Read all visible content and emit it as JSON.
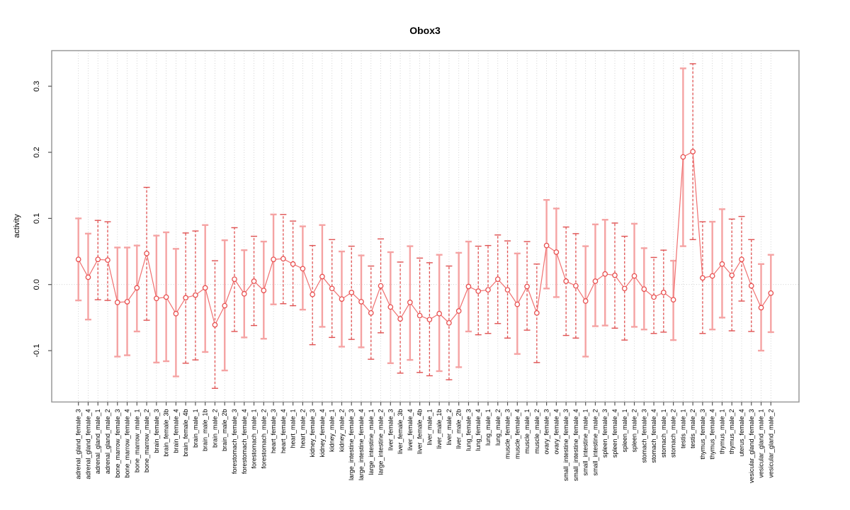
{
  "title": "Obox3",
  "chart_data": {
    "type": "line",
    "title": "Obox3",
    "xlabel": "",
    "ylabel": "activity",
    "ylim": [
      -0.178,
      0.354
    ],
    "yticks": [
      -0.1,
      0.0,
      0.1,
      0.2,
      0.3
    ],
    "ytick_labels": [
      "-0.1",
      "0.0",
      "0.1",
      "0.2",
      "0.3"
    ],
    "grid": "dotted vertical line at every category; dotted horizontal line at y=0",
    "legend_position": "none",
    "marker": "open-circle",
    "categories": [
      "adrenal_gland_female_3",
      "adrenal_gland_female_4",
      "adrenal_gland_male_1",
      "adrenal_gland_male_2",
      "bone_marrow_female_3",
      "bone_marrow_female_4",
      "bone_marrow_male_1",
      "bone_marrow_male_2",
      "brain_female_3",
      "brain_female_3b",
      "brain_female_4",
      "brain_female_4b",
      "brain_male_1",
      "brain_male_1b",
      "brain_male_2",
      "brain_male_2b",
      "forestomach_female_3",
      "forestomach_female_4",
      "forestomach_male_1",
      "forestomach_male_2",
      "heart_female_3",
      "heart_female_4",
      "heart_male_1",
      "heart_male_2",
      "kidney_female_3",
      "kidney_female_4",
      "kidney_male_1",
      "kidney_male_2",
      "large_intestine_female_3",
      "large_intestine_female_4",
      "large_intestine_male_1",
      "large_intestine_male_2",
      "liver_female_3",
      "liver_female_3b",
      "liver_female_4",
      "liver_female_4b",
      "liver_male_1",
      "liver_male_1b",
      "liver_male_2",
      "liver_male_2b",
      "lung_female_3",
      "lung_female_4",
      "lung_male_1",
      "lung_male_2",
      "muscle_female_3",
      "muscle_female_4",
      "muscle_male_1",
      "muscle_male_2",
      "ovary_female_3",
      "ovary_female_4",
      "small_intestine_female_3",
      "small_intestine_female_4",
      "small_intestine_male_1",
      "small_intestine_male_2",
      "spleen_female_3",
      "spleen_female_4",
      "spleen_male_1",
      "spleen_male_2",
      "stomach_female_3",
      "stomach_female_4",
      "stomach_male_1",
      "stomach_male_2",
      "testis_male_1",
      "testis_male_2",
      "thymus_female_3",
      "thymus_female_4",
      "thymus_male_1",
      "thymus_male_2",
      "uterus_female_4",
      "vesicular_gland_female_3",
      "vesicular_gland_male_1",
      "vesicular_gland_male_2"
    ],
    "series": [
      {
        "name": "activity",
        "values": [
          0.038,
          0.011,
          0.038,
          0.037,
          -0.027,
          -0.026,
          -0.005,
          0.047,
          -0.021,
          -0.019,
          -0.044,
          -0.02,
          -0.016,
          -0.005,
          -0.061,
          -0.032,
          0.008,
          -0.014,
          0.005,
          -0.009,
          0.038,
          0.039,
          0.031,
          0.024,
          -0.015,
          0.012,
          -0.006,
          -0.022,
          -0.012,
          -0.026,
          -0.043,
          -0.002,
          -0.034,
          -0.052,
          -0.027,
          -0.047,
          -0.053,
          -0.044,
          -0.058,
          -0.04,
          -0.003,
          -0.01,
          -0.008,
          0.008,
          -0.008,
          -0.03,
          -0.003,
          -0.043,
          0.059,
          0.049,
          0.005,
          -0.002,
          -0.025,
          0.005,
          0.016,
          0.014,
          -0.006,
          0.013,
          -0.007,
          -0.019,
          -0.012,
          -0.023,
          0.193,
          0.201,
          0.01,
          0.013,
          0.031,
          0.014,
          0.038,
          -0.002,
          -0.035,
          -0.013
        ],
        "err_lo": [
          -0.024,
          -0.053,
          -0.023,
          -0.024,
          -0.109,
          -0.107,
          -0.071,
          -0.054,
          -0.118,
          -0.116,
          -0.139,
          -0.119,
          -0.114,
          -0.102,
          -0.157,
          -0.13,
          -0.071,
          -0.08,
          -0.062,
          -0.082,
          -0.03,
          -0.029,
          -0.032,
          -0.038,
          -0.091,
          -0.064,
          -0.08,
          -0.094,
          -0.083,
          -0.095,
          -0.113,
          -0.073,
          -0.119,
          -0.134,
          -0.114,
          -0.133,
          -0.138,
          -0.131,
          -0.144,
          -0.125,
          -0.071,
          -0.076,
          -0.074,
          -0.059,
          -0.081,
          -0.105,
          -0.069,
          -0.118,
          -0.006,
          -0.019,
          -0.077,
          -0.081,
          -0.109,
          -0.063,
          -0.062,
          -0.066,
          -0.084,
          -0.064,
          -0.068,
          -0.074,
          -0.072,
          -0.084,
          0.058,
          0.068,
          -0.074,
          -0.068,
          -0.05,
          -0.07,
          -0.025,
          -0.071,
          -0.1,
          -0.072
        ],
        "err_hi": [
          0.1,
          0.077,
          0.097,
          0.095,
          0.056,
          0.056,
          0.059,
          0.147,
          0.074,
          0.079,
          0.054,
          0.078,
          0.081,
          0.09,
          0.036,
          0.067,
          0.086,
          0.052,
          0.073,
          0.065,
          0.106,
          0.106,
          0.096,
          0.088,
          0.059,
          0.09,
          0.068,
          0.05,
          0.058,
          0.044,
          0.028,
          0.069,
          0.049,
          0.034,
          0.058,
          0.04,
          0.033,
          0.045,
          0.028,
          0.048,
          0.065,
          0.058,
          0.059,
          0.075,
          0.066,
          0.047,
          0.065,
          0.031,
          0.128,
          0.115,
          0.087,
          0.077,
          0.058,
          0.091,
          0.098,
          0.093,
          0.073,
          0.092,
          0.055,
          0.041,
          0.052,
          0.036,
          0.327,
          0.334,
          0.095,
          0.095,
          0.114,
          0.099,
          0.103,
          0.068,
          0.031,
          0.045
        ],
        "bar_style": [
          "s",
          "s",
          "d",
          "d",
          "s",
          "s",
          "s",
          "d",
          "s",
          "s",
          "s",
          "d",
          "d",
          "s",
          "d",
          "s",
          "d",
          "s",
          "d",
          "s",
          "s",
          "d",
          "d",
          "s",
          "d",
          "s",
          "d",
          "s",
          "d",
          "s",
          "d",
          "d",
          "s",
          "d",
          "s",
          "d",
          "d",
          "s",
          "d",
          "s",
          "s",
          "d",
          "d",
          "d",
          "d",
          "s",
          "d",
          "d",
          "s",
          "s",
          "d",
          "d",
          "s",
          "s",
          "s",
          "d",
          "d",
          "s",
          "s",
          "d",
          "d",
          "s",
          "s",
          "d",
          "d",
          "s",
          "s",
          "d",
          "d",
          "d",
          "s",
          "s"
        ]
      }
    ],
    "colors": {
      "marker_stroke": "#e85050",
      "series_line": "#f07070",
      "bar_solid": "#f5a3a3",
      "bar_dashed": "#e05252",
      "gridline": "#c8c8c8",
      "box_border": "#999999",
      "tick": "#555555",
      "text": "#000000"
    }
  }
}
